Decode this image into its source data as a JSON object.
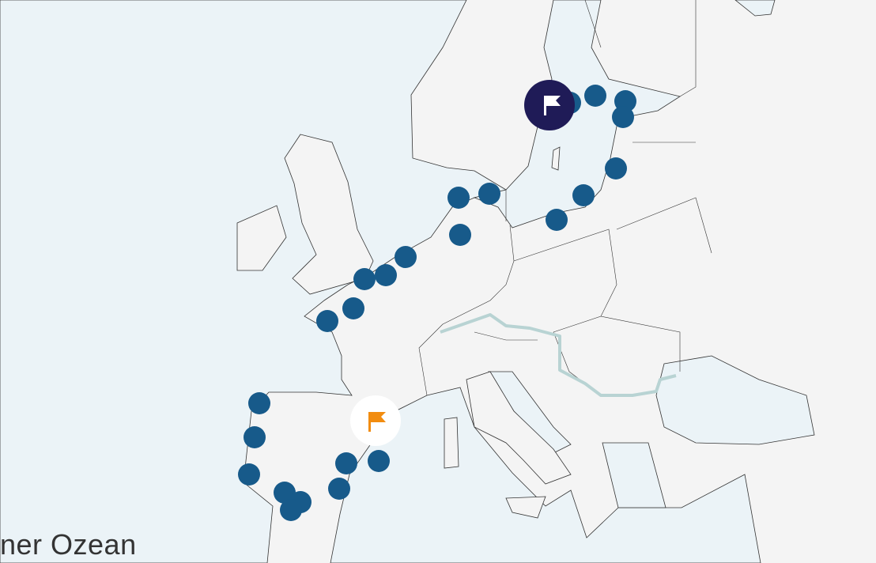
{
  "map": {
    "ocean_label": "ner Ozean",
    "colors": {
      "land": "#f4f4f4",
      "sea": "#ebf3f7",
      "border": "#333333",
      "marker": "#175a8a",
      "selected_marker": "#1f1b57",
      "start_marker_fill": "#ffffff",
      "start_flag": "#f28c0f",
      "route": "#b8d3d3"
    },
    "markers": {
      "count": 24,
      "icon": "circle"
    },
    "selected_marker": {
      "icon": "flag-icon"
    },
    "start_marker": {
      "icon": "flag-icon"
    }
  }
}
